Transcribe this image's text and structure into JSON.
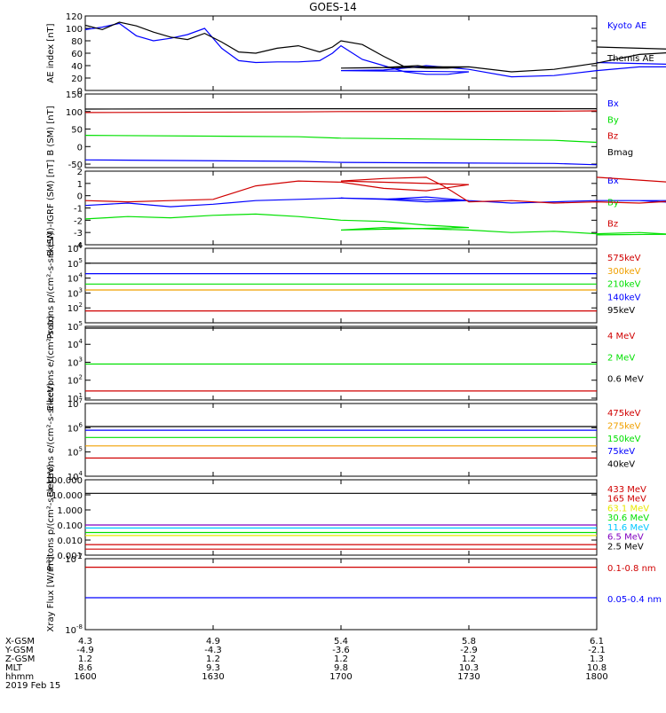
{
  "title": "GOES-14",
  "colors": {
    "black": "#000000",
    "blue": "#0000ff",
    "green": "#00e000",
    "red": "#d00000",
    "orange": "#f0a000",
    "yellow": "#e8e800",
    "cyan": "#00c8ff",
    "purple": "#8000c0"
  },
  "footer": {
    "row_labels": [
      "X-GSM",
      "Y-GSM",
      "Z-GSM",
      "MLT",
      "hhmm"
    ],
    "date": "2019 Feb 15",
    "columns": [
      {
        "time": "1600",
        "vals": [
          "4.3",
          "-4.9",
          "1.2",
          "8.6",
          "1600"
        ]
      },
      {
        "time": "1630",
        "vals": [
          "4.9",
          "-4.3",
          "1.2",
          "9.3",
          "1630"
        ]
      },
      {
        "time": "1700",
        "vals": [
          "5.4",
          "-3.6",
          "1.2",
          "9.8",
          "1700"
        ]
      },
      {
        "time": "1730",
        "vals": [
          "5.8",
          "-2.9",
          "1.2",
          "10.3",
          "1730"
        ]
      },
      {
        "time": "1800",
        "vals": [
          "6.1",
          "-2.1",
          "1.3",
          "10.8",
          "1800"
        ]
      }
    ]
  },
  "chart_data": [
    {
      "type": "line",
      "ylabel": "AE index [nT]",
      "ylim": [
        0,
        120
      ],
      "yscale": "linear",
      "yticks": [
        "0",
        "20",
        "40",
        "60",
        "80",
        "100",
        "120"
      ],
      "xlim": [
        "1600",
        "1800"
      ],
      "series": [
        {
          "name": "Kyoto AE",
          "color": "blue",
          "x": [
            "1600",
            "1604",
            "1608",
            "1612",
            "1616",
            "1620",
            "1624",
            "1628",
            "1632",
            "1636",
            "1640",
            "1645",
            "1650",
            "1655",
            "1658",
            "1660",
            "1665",
            "1670",
            "1675",
            "1680",
            "1685",
            "1690",
            "1700",
            "1710",
            "1718",
            "1720",
            "1730",
            "1740",
            "1750",
            "1760",
            "1770",
            "1780",
            "1790",
            "1800"
          ],
          "values": [
            98,
            102,
            108,
            88,
            80,
            84,
            90,
            100,
            68,
            48,
            45,
            46,
            46,
            48,
            60,
            72,
            50,
            40,
            30,
            26,
            26,
            30,
            32,
            33,
            38,
            40,
            34,
            22,
            24,
            32,
            38,
            38,
            40,
            45
          ]
        },
        {
          "name": "Themis AE",
          "color": "black",
          "x": [
            "1600",
            "1604",
            "1608",
            "1612",
            "1616",
            "1620",
            "1624",
            "1628",
            "1632",
            "1636",
            "1640",
            "1645",
            "1650",
            "1655",
            "1658",
            "1660",
            "1665",
            "1670",
            "1675",
            "1680",
            "1685",
            "1690",
            "1700",
            "1710",
            "1718",
            "1720",
            "1730",
            "1740",
            "1750",
            "1760",
            "1770",
            "1780",
            "1790",
            "1800"
          ],
          "values": [
            105,
            98,
            110,
            104,
            94,
            86,
            82,
            92,
            78,
            62,
            60,
            68,
            72,
            62,
            70,
            80,
            74,
            55,
            38,
            36,
            36,
            38,
            36,
            37,
            40,
            38,
            38,
            30,
            34,
            44,
            58,
            62,
            64,
            70
          ]
        }
      ]
    },
    {
      "type": "line",
      "ylabel": "B (SM) [nT]",
      "ylim": [
        -60,
        150
      ],
      "yscale": "linear",
      "yticks": [
        "-50",
        "0",
        "50",
        "100",
        "150"
      ],
      "series": [
        {
          "name": "Bx",
          "color": "blue",
          "x": [
            "1600",
            "1650",
            "1700",
            "1750",
            "1800"
          ],
          "values": [
            -38,
            -42,
            -45,
            -48,
            -52
          ]
        },
        {
          "name": "By",
          "color": "green",
          "x": [
            "1600",
            "1650",
            "1700",
            "1750",
            "1800"
          ],
          "values": [
            32,
            28,
            24,
            18,
            12
          ]
        },
        {
          "name": "Bz",
          "color": "red",
          "x": [
            "1600",
            "1650",
            "1700",
            "1750",
            "1800"
          ],
          "values": [
            97,
            99,
            100,
            101,
            102
          ]
        },
        {
          "name": "Bmag",
          "color": "black",
          "x": [
            "1600",
            "1650",
            "1700",
            "1750",
            "1800"
          ],
          "values": [
            107,
            108,
            108,
            108,
            108
          ]
        }
      ]
    },
    {
      "type": "line",
      "ylabel": "B (SM)-IGRF (SM) [nT]",
      "ylim": [
        -4,
        2
      ],
      "yscale": "linear",
      "yticks": [
        "-4",
        "-3",
        "-2",
        "-1",
        "0",
        "1",
        "2"
      ],
      "series": [
        {
          "name": "Bx",
          "color": "blue",
          "x": [
            "1600",
            "1610",
            "1620",
            "1630",
            "1640",
            "1650",
            "1660",
            "1670",
            "1680",
            "1690",
            "1700",
            "1710",
            "1720",
            "1730",
            "1740",
            "1750",
            "1760",
            "1770",
            "1780",
            "1790",
            "1800"
          ],
          "values": [
            -0.8,
            -0.6,
            -0.9,
            -0.7,
            -0.4,
            -0.3,
            -0.2,
            -0.3,
            -0.1,
            -0.4,
            -0.2,
            -0.3,
            -0.5,
            -0.4,
            -0.6,
            -0.5,
            -0.4,
            -0.4,
            -0.6,
            -0.4,
            -0.4
          ]
        },
        {
          "name": "By",
          "color": "green",
          "x": [
            "1600",
            "1610",
            "1620",
            "1630",
            "1640",
            "1650",
            "1660",
            "1670",
            "1680",
            "1690",
            "1700",
            "1710",
            "1720",
            "1730",
            "1740",
            "1750",
            "1760",
            "1770",
            "1780",
            "1790",
            "1800"
          ],
          "values": [
            -1.9,
            -1.7,
            -1.8,
            -1.6,
            -1.5,
            -1.7,
            -2.0,
            -2.1,
            -2.4,
            -2.6,
            -2.8,
            -2.6,
            -2.7,
            -2.8,
            -3.0,
            -2.9,
            -3.1,
            -3.0,
            -3.2,
            -3.1,
            -3.2
          ]
        },
        {
          "name": "Bz",
          "color": "red",
          "x": [
            "1600",
            "1610",
            "1620",
            "1630",
            "1640",
            "1650",
            "1660",
            "1670",
            "1680",
            "1690",
            "1700",
            "1710",
            "1720",
            "1724",
            "1730",
            "1740",
            "1750",
            "1760",
            "1770",
            "1780",
            "1790",
            "1800"
          ],
          "values": [
            -0.4,
            -0.5,
            -0.4,
            -0.3,
            0.8,
            1.2,
            1.1,
            0.6,
            0.4,
            0.9,
            1.2,
            1.4,
            1.5,
            0.8,
            -0.5,
            -0.4,
            -0.6,
            -0.5,
            -0.6,
            -0.4,
            0.8,
            1.5
          ]
        }
      ]
    },
    {
      "type": "line",
      "ylabel": "Protons p/(cm²-s-sr-keV)",
      "ylim": [
        1,
        6
      ],
      "yscale": "log10",
      "yticks": [
        "10^2",
        "10^3",
        "10^4",
        "10^5",
        "10^6"
      ],
      "series": [
        {
          "name": "575keV",
          "color": "red",
          "x": [
            "1600",
            "1800"
          ],
          "values": [
            1.8,
            1.8
          ]
        },
        {
          "name": "300keV",
          "color": "orange",
          "x": [
            "1600",
            "1800"
          ],
          "values": [
            3.2,
            3.2
          ]
        },
        {
          "name": "210keV",
          "color": "green",
          "x": [
            "1600",
            "1800"
          ],
          "values": [
            3.6,
            3.6
          ]
        },
        {
          "name": "140keV",
          "color": "blue",
          "x": [
            "1600",
            "1800"
          ],
          "values": [
            4.3,
            4.3
          ]
        },
        {
          "name": "95keV",
          "color": "black",
          "x": [
            "1600",
            "1800"
          ],
          "values": [
            5.0,
            5.0
          ]
        }
      ]
    },
    {
      "type": "line",
      "ylabel": "Electrons e/(cm²-s-sr)",
      "ylim": [
        0.9,
        5
      ],
      "yscale": "log10",
      "yticks": [
        "10^1",
        "10^2",
        "10^3",
        "10^4",
        "10^5"
      ],
      "series": [
        {
          "name": "4 MeV",
          "color": "red",
          "x": [
            "1600",
            "1800"
          ],
          "values": [
            1.4,
            1.4
          ]
        },
        {
          "name": "2 MeV",
          "color": "green",
          "x": [
            "1600",
            "1800"
          ],
          "values": [
            2.9,
            2.9
          ]
        },
        {
          "name": "0.6 MeV",
          "color": "black",
          "x": [
            "1600",
            "1800"
          ],
          "values": [
            4.9,
            4.9
          ]
        }
      ]
    },
    {
      "type": "line",
      "ylabel": "Electrons e/(cm²-s-sr-keV)",
      "ylim": [
        4,
        7
      ],
      "yscale": "log10",
      "yticks": [
        "10^4",
        "10^5",
        "10^6",
        "10^7"
      ],
      "series": [
        {
          "name": "475keV",
          "color": "red",
          "x": [
            "1600",
            "1800"
          ],
          "values": [
            4.75,
            4.75
          ]
        },
        {
          "name": "275keV",
          "color": "orange",
          "x": [
            "1600",
            "1800"
          ],
          "values": [
            5.25,
            5.25
          ]
        },
        {
          "name": "150keV",
          "color": "green",
          "x": [
            "1600",
            "1800"
          ],
          "values": [
            5.6,
            5.6
          ]
        },
        {
          "name": "75keV",
          "color": "blue",
          "x": [
            "1600",
            "1800"
          ],
          "values": [
            5.9,
            5.9
          ]
        },
        {
          "name": "40keV",
          "color": "black",
          "x": [
            "1600",
            "1800"
          ],
          "values": [
            6.05,
            6.05
          ]
        }
      ]
    },
    {
      "type": "line",
      "ylabel": "Protons p/(cm²-s-sr-keV)",
      "ylim": [
        -3,
        2
      ],
      "yscale": "log10",
      "yticks": [
        "0.001",
        "0.010",
        "0.100",
        "1.000",
        "10.000",
        "100.000"
      ],
      "series": [
        {
          "name": "433 MeV",
          "color": "red",
          "x": [
            "1600",
            "1800"
          ],
          "values": [
            -2.6,
            -2.6
          ]
        },
        {
          "name": "165 MeV",
          "color": "red",
          "x": [
            "1600",
            "1800"
          ],
          "values": [
            -2.3,
            -2.3
          ]
        },
        {
          "name": "63.1 MeV",
          "color": "yellow",
          "x": [
            "1600",
            "1800"
          ],
          "values": [
            -1.7,
            -1.7
          ]
        },
        {
          "name": "30.6 MeV",
          "color": "green",
          "x": [
            "1600",
            "1800"
          ],
          "values": [
            -1.5,
            -1.5
          ]
        },
        {
          "name": "11.6 MeV",
          "color": "cyan",
          "x": [
            "1600",
            "1800"
          ],
          "values": [
            -1.2,
            -1.2
          ]
        },
        {
          "name": "6.5 MeV",
          "color": "purple",
          "x": [
            "1600",
            "1800"
          ],
          "values": [
            -1.0,
            -1.0
          ]
        },
        {
          "name": "2.5 MeV",
          "color": "black",
          "x": [
            "1600",
            "1800"
          ],
          "values": [
            1.1,
            1.1
          ]
        }
      ]
    },
    {
      "type": "line",
      "ylabel": "Xray Flux [W/m²]",
      "ylim": [
        -8,
        -7
      ],
      "yscale": "log10",
      "yticks": [
        "10^-8",
        "10^-7"
      ],
      "series": [
        {
          "name": "0.1-0.8 nm",
          "color": "red",
          "x": [
            "1600",
            "1800"
          ],
          "values": [
            -7.12,
            -7.12
          ]
        },
        {
          "name": "0.05-0.4 nm",
          "color": "blue",
          "x": [
            "1600",
            "1800"
          ],
          "values": [
            -7.55,
            -7.55
          ]
        }
      ]
    }
  ]
}
